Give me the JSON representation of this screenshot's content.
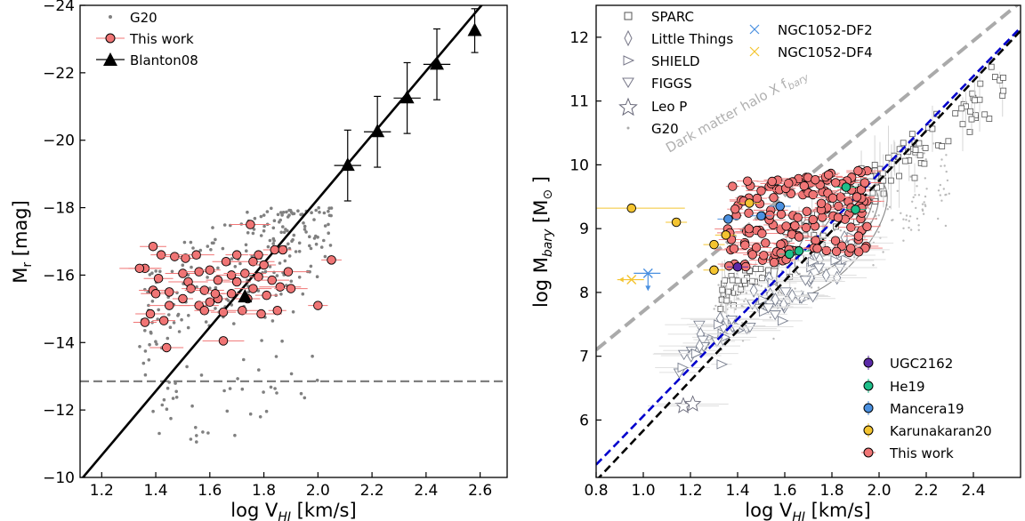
{
  "chart_data": [
    {
      "type": "scatter",
      "xlabel": "log V",
      "xlabel_sub": "HI",
      "xlabel_unit": " [km/s]",
      "ylabel": "M",
      "ylabel_sub": "r",
      "ylabel_unit": " [mag]",
      "xlim": [
        1.12,
        2.7
      ],
      "ylim": [
        -10,
        -24
      ],
      "y_inverted": true,
      "xticks": [
        "1.2",
        "1.4",
        "1.6",
        "1.8",
        "2.0",
        "2.2",
        "2.4",
        "2.6"
      ],
      "yticks": [
        "−10",
        "−12",
        "−14",
        "−16",
        "−18",
        "−20",
        "−22",
        "−24"
      ],
      "legend": [
        "G20",
        "This work",
        "Blanton08"
      ],
      "legend_position": "top-left",
      "hline": {
        "y": -12.85,
        "style": "dashed",
        "color": "#808080"
      },
      "fit_line": {
        "x": [
          1.12,
          2.7
        ],
        "y": [
          -9.9,
          -24.9
        ],
        "color": "#000000"
      },
      "series": [
        {
          "name": "Blanton08",
          "marker": "triangle",
          "color": "#000000",
          "points": [
            {
              "x": 1.73,
              "y": -15.35,
              "xerr": 0.0,
              "yerr": 0.0
            },
            {
              "x": 2.11,
              "y": -19.25,
              "xerr": 0.05,
              "yerr": 1.05
            },
            {
              "x": 2.22,
              "y": -20.25,
              "xerr": 0.05,
              "yerr": 1.05
            },
            {
              "x": 2.33,
              "y": -21.25,
              "xerr": 0.05,
              "yerr": 1.05
            },
            {
              "x": 2.44,
              "y": -22.25,
              "xerr": 0.05,
              "yerr": 1.05
            },
            {
              "x": 2.58,
              "y": -23.25,
              "xerr": 0.0,
              "yerr": 0.65
            }
          ]
        },
        {
          "name": "This work",
          "marker": "circle",
          "color": "#f07575",
          "points": [
            {
              "x": 1.39,
              "y": -16.85
            },
            {
              "x": 1.42,
              "y": -16.6
            },
            {
              "x": 1.36,
              "y": -16.2
            },
            {
              "x": 1.34,
              "y": -16.2
            },
            {
              "x": 1.41,
              "y": -15.9
            },
            {
              "x": 1.39,
              "y": -15.55
            },
            {
              "x": 1.4,
              "y": -15.45
            },
            {
              "x": 1.45,
              "y": -15.5
            },
            {
              "x": 1.45,
              "y": -15.1
            },
            {
              "x": 1.38,
              "y": -14.85
            },
            {
              "x": 1.36,
              "y": -14.6
            },
            {
              "x": 1.43,
              "y": -14.65
            },
            {
              "x": 1.44,
              "y": -13.85
            },
            {
              "x": 1.47,
              "y": -16.55
            },
            {
              "x": 1.51,
              "y": -16.5
            },
            {
              "x": 1.55,
              "y": -16.6
            },
            {
              "x": 1.5,
              "y": -16.05
            },
            {
              "x": 1.56,
              "y": -16.1
            },
            {
              "x": 1.52,
              "y": -15.8
            },
            {
              "x": 1.6,
              "y": -16.15
            },
            {
              "x": 1.53,
              "y": -15.6
            },
            {
              "x": 1.58,
              "y": -15.55
            },
            {
              "x": 1.63,
              "y": -15.85
            },
            {
              "x": 1.56,
              "y": -15.1
            },
            {
              "x": 1.6,
              "y": -15.2
            },
            {
              "x": 1.63,
              "y": -15.3
            },
            {
              "x": 1.68,
              "y": -15.45
            },
            {
              "x": 1.58,
              "y": -14.95
            },
            {
              "x": 1.65,
              "y": -14.9
            },
            {
              "x": 1.65,
              "y": -14.05
            },
            {
              "x": 1.68,
              "y": -16.0
            },
            {
              "x": 1.7,
              "y": -15.8
            },
            {
              "x": 1.73,
              "y": -16.05
            },
            {
              "x": 1.74,
              "y": -15.3
            },
            {
              "x": 1.72,
              "y": -14.95
            },
            {
              "x": 1.75,
              "y": -17.5
            },
            {
              "x": 1.76,
              "y": -16.4
            },
            {
              "x": 1.78,
              "y": -16.6
            },
            {
              "x": 1.8,
              "y": -16.3
            },
            {
              "x": 1.84,
              "y": -16.75
            },
            {
              "x": 1.87,
              "y": -16.75
            },
            {
              "x": 1.78,
              "y": -15.95
            },
            {
              "x": 1.83,
              "y": -15.85
            },
            {
              "x": 1.86,
              "y": -15.65
            },
            {
              "x": 1.76,
              "y": -15.6
            },
            {
              "x": 1.81,
              "y": -15.4
            },
            {
              "x": 1.79,
              "y": -14.85
            },
            {
              "x": 1.85,
              "y": -14.95
            },
            {
              "x": 1.9,
              "y": -15.6
            },
            {
              "x": 1.89,
              "y": -16.1
            },
            {
              "x": 2.05,
              "y": -16.45
            },
            {
              "x": 2.0,
              "y": -15.1
            },
            {
              "x": 1.66,
              "y": -16.4
            },
            {
              "x": 1.7,
              "y": -16.6
            },
            {
              "x": 1.62,
              "y": -15.45
            },
            {
              "x": 1.5,
              "y": -15.3
            }
          ]
        }
      ]
    },
    {
      "type": "scatter",
      "xlabel": "log V",
      "xlabel_sub": "HI",
      "xlabel_unit": " [km/s]",
      "ylabel": "log M",
      "ylabel_sub": "bary",
      "ylabel_unit": " [M",
      "ylabel_symbol": "⊙",
      "ylabel_close": " ]",
      "xlim": [
        0.8,
        2.6
      ],
      "ylim": [
        5.1,
        12.5
      ],
      "xticks": [
        "0.8",
        "1.0",
        "1.2",
        "1.4",
        "1.6",
        "1.8",
        "2.0",
        "2.2",
        "2.4"
      ],
      "yticks": [
        "6",
        "7",
        "8",
        "9",
        "10",
        "11",
        "12"
      ],
      "annotation": "Dark matter halo X f",
      "annotation_sub": "bary",
      "legend_top": [
        "SPARC",
        "Little Things",
        "SHIELD",
        "FIGGS",
        "Leo P",
        "G20",
        "NGC1052-DF2",
        "NGC1052-DF4"
      ],
      "legend_top_position": "top-left",
      "legend_bottom": [
        "UGC2162",
        "He19",
        "Mancera19",
        "Karunakaran20",
        "This work"
      ],
      "legend_bottom_position": "lower-right",
      "colors": {
        "ugc2162": "#5b2aa8",
        "he19": "#1fbf8a",
        "mancera19": "#4a90e0",
        "karunakaran20": "#f4c430",
        "this_work": "#f07575",
        "ngc_df2": "#4a90e0",
        "ngc_df4": "#f4c430",
        "grey_line": "#aaaaaa",
        "blue_line": "#0000cc"
      },
      "lines": [
        {
          "name": "Dark matter halo",
          "x": [
            0.8,
            2.6
          ],
          "y": [
            7.1,
            12.55
          ],
          "style": "dashed",
          "color": "#aaaaaa"
        },
        {
          "name": "blue fit",
          "x": [
            0.8,
            2.6
          ],
          "y": [
            5.3,
            12.15
          ],
          "style": "dashed",
          "color": "#0000cc"
        },
        {
          "name": "black fit",
          "x": [
            0.8,
            2.6
          ],
          "y": [
            5.05,
            12.1
          ],
          "style": "dashed",
          "color": "#000000"
        }
      ],
      "series": [
        {
          "name": "UGC2162",
          "points": [
            {
              "x": 1.4,
              "y": 8.4
            }
          ]
        },
        {
          "name": "He19",
          "points": [
            {
              "x": 1.62,
              "y": 8.6
            },
            {
              "x": 1.66,
              "y": 8.65
            },
            {
              "x": 1.86,
              "y": 9.65
            },
            {
              "x": 1.9,
              "y": 9.3
            }
          ]
        },
        {
          "name": "Mancera19",
          "points": [
            {
              "x": 1.36,
              "y": 9.15
            },
            {
              "x": 1.5,
              "y": 9.2
            },
            {
              "x": 1.58,
              "y": 9.35
            }
          ]
        },
        {
          "name": "Karunakaran20",
          "points": [
            {
              "x": 0.95,
              "y": 9.32
            },
            {
              "x": 1.14,
              "y": 9.1
            },
            {
              "x": 1.3,
              "y": 8.75
            },
            {
              "x": 1.3,
              "y": 8.35
            },
            {
              "x": 1.35,
              "y": 8.9
            },
            {
              "x": 1.45,
              "y": 9.4
            }
          ]
        },
        {
          "name": "NGC1052-DF2",
          "points": [
            {
              "x": 1.02,
              "y": 8.3
            }
          ]
        },
        {
          "name": "NGC1052-DF4",
          "points": [
            {
              "x": 0.95,
              "y": 8.2
            }
          ]
        }
      ]
    }
  ]
}
